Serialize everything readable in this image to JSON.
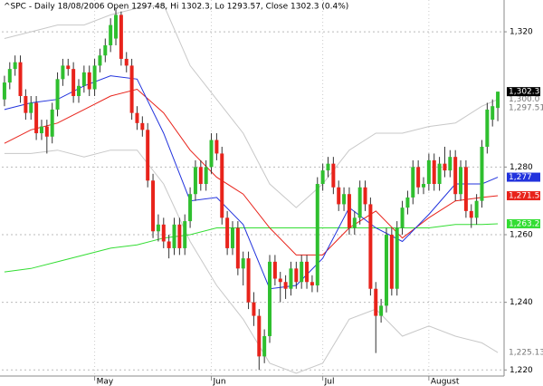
{
  "chart_data": {
    "type": "candlestick",
    "title": "^SPC - Daily 18/08/2006 Open 1297.48, Hi 1302.3, Lo 1293.57, Close 1302.3 (0.4%)",
    "categories": [
      null,
      null,
      null,
      null,
      null,
      null,
      null,
      null,
      null,
      null,
      null,
      null,
      null,
      null,
      null,
      null,
      null,
      "May",
      null,
      null,
      null,
      null,
      null,
      null,
      null,
      null,
      null,
      null,
      null,
      null,
      null,
      null,
      null,
      null,
      null,
      null,
      null,
      null,
      null,
      "Jun",
      null,
      null,
      null,
      null,
      null,
      null,
      null,
      null,
      null,
      null,
      null,
      null,
      null,
      null,
      null,
      null,
      null,
      null,
      null,
      null,
      "Jul",
      null,
      null,
      null,
      null,
      null,
      null,
      null,
      null,
      null,
      null,
      null,
      null,
      null,
      null,
      null,
      null,
      null,
      null,
      null,
      "August",
      null,
      null,
      null,
      null,
      null,
      null,
      null,
      null,
      null,
      null,
      null,
      null,
      null
    ],
    "open": [
      1300,
      1305,
      1309,
      1311,
      1301,
      1296,
      1299,
      1290,
      1292,
      1289,
      1297,
      1306,
      1310,
      1309,
      1301,
      1304,
      1308,
      1303,
      1310,
      1313,
      1316,
      1318,
      1325,
      1312,
      1310,
      1296,
      1293,
      1291,
      1276,
      1261,
      1263,
      1258,
      1256,
      1263,
      1256,
      1264,
      1272,
      1280,
      1275,
      1280,
      1288,
      1284,
      1265,
      1256,
      1262,
      1250,
      1253,
      1240,
      1236,
      1224,
      1230,
      1252,
      1247,
      1246,
      1244,
      1250,
      1246,
      1252,
      1246,
      1245,
      1275,
      1279,
      1281,
      1274,
      1269,
      1272,
      1262,
      1265,
      1274,
      1269,
      1244,
      1236,
      1239,
      1260,
      1244,
      1262,
      1268,
      1271,
      1280,
      1274,
      1275,
      1282,
      1275,
      1281,
      1279,
      1283,
      1272,
      1280,
      1267,
      1265,
      1270,
      1286,
      1294,
      1297.48
    ],
    "high": [
      1307,
      1311,
      1313,
      1313,
      1303,
      1301,
      1301,
      1294,
      1294,
      1299,
      1308,
      1312,
      1312,
      1311,
      1306,
      1310,
      1310,
      1312,
      1315,
      1318,
      1324,
      1327,
      1326,
      1314,
      1312,
      1298,
      1295,
      1293,
      1278,
      1266,
      1265,
      1260,
      1265,
      1265,
      1266,
      1274,
      1282,
      1282,
      1282,
      1290,
      1290,
      1286,
      1267,
      1264,
      1264,
      1255,
      1255,
      1243,
      1238,
      1232,
      1254,
      1254,
      1249,
      1248,
      1252,
      1252,
      1254,
      1254,
      1248,
      1277,
      1281,
      1283,
      1283,
      1276,
      1274,
      1274,
      1267,
      1276,
      1276,
      1271,
      1246,
      1241,
      1262,
      1262,
      1264,
      1270,
      1273,
      1282,
      1282,
      1277,
      1284,
      1284,
      1283,
      1286,
      1285,
      1285,
      1282,
      1282,
      1269,
      1272,
      1288,
      1299,
      1300,
      1302.3
    ],
    "low": [
      1298,
      1303,
      1307,
      1299,
      1294,
      1294,
      1288,
      1288,
      1284,
      1287,
      1295,
      1304,
      1307,
      1299,
      1299,
      1302,
      1301,
      1301,
      1308,
      1311,
      1314,
      1316,
      1310,
      1308,
      1294,
      1291,
      1289,
      1274,
      1259,
      1258,
      1256,
      1253,
      1254,
      1254,
      1254,
      1262,
      1270,
      1273,
      1273,
      1278,
      1282,
      1263,
      1254,
      1254,
      1248,
      1245,
      1238,
      1233,
      1220,
      1222,
      1228,
      1245,
      1240,
      1241,
      1242,
      1244,
      1244,
      1244,
      1243,
      1243,
      1273,
      1277,
      1272,
      1267,
      1267,
      1260,
      1260,
      1263,
      1267,
      1242,
      1225,
      1234,
      1237,
      1242,
      1242,
      1260,
      1266,
      1269,
      1272,
      1272,
      1273,
      1273,
      1273,
      1277,
      1277,
      1270,
      1270,
      1265,
      1262,
      1263,
      1268,
      1284,
      1292,
      1293.57
    ],
    "close": [
      1305,
      1309,
      1311,
      1301,
      1296,
      1299,
      1290,
      1292,
      1289,
      1297,
      1306,
      1310,
      1309,
      1301,
      1304,
      1308,
      1303,
      1310,
      1313,
      1316,
      1322,
      1325,
      1312,
      1310,
      1296,
      1293,
      1291,
      1276,
      1261,
      1263,
      1258,
      1256,
      1263,
      1256,
      1264,
      1272,
      1280,
      1275,
      1280,
      1288,
      1284,
      1265,
      1256,
      1262,
      1250,
      1253,
      1240,
      1236,
      1224,
      1230,
      1252,
      1247,
      1246,
      1244,
      1250,
      1246,
      1252,
      1246,
      1245,
      1275,
      1279,
      1281,
      1274,
      1269,
      1272,
      1262,
      1265,
      1274,
      1269,
      1244,
      1236,
      1239,
      1260,
      1244,
      1262,
      1268,
      1271,
      1280,
      1274,
      1275,
      1282,
      1275,
      1281,
      1279,
      1283,
      1272,
      1280,
      1267,
      1265,
      1270,
      1286,
      1297,
      1298,
      1302.3
    ],
    "up_color": "#2fbf2f",
    "down_color": "#e8231b",
    "close_label": "1,302.3",
    "overlays": [
      {
        "color": "#c8c8c8",
        "x": [
          0,
          5,
          10,
          15,
          20,
          25,
          30,
          35,
          40,
          45,
          50,
          55,
          60,
          65,
          70,
          75,
          80,
          85,
          90,
          93
        ],
        "values": [
          1318,
          1320,
          1322,
          1322,
          1325,
          1327,
          1328,
          1310,
          1300,
          1290,
          1275,
          1268,
          1275,
          1285,
          1290,
          1290,
          1292,
          1293,
          1298,
          1300
        ],
        "label": "1,300.0",
        "label_box": false
      },
      {
        "color": "#c8c8c8",
        "x": [
          0,
          5,
          10,
          15,
          20,
          25,
          30,
          35,
          40,
          45,
          50,
          55,
          60,
          65,
          70,
          75,
          80,
          85,
          90,
          93
        ],
        "values": [
          1284,
          1284,
          1285,
          1283,
          1285,
          1285,
          1275,
          1258,
          1245,
          1235,
          1222,
          1219,
          1222,
          1235,
          1238,
          1230,
          1233,
          1230,
          1228,
          1225.13
        ],
        "label": "1,225.13",
        "label_box": false
      },
      {
        "color": "#33dd33",
        "x": [
          0,
          5,
          10,
          15,
          20,
          25,
          30,
          35,
          40,
          45,
          50,
          55,
          60,
          65,
          70,
          75,
          80,
          85,
          90,
          93
        ],
        "values": [
          1249,
          1250,
          1252,
          1254,
          1256,
          1257,
          1259,
          1260,
          1262,
          1262,
          1262,
          1262,
          1262,
          1262,
          1262,
          1262,
          1262,
          1263,
          1263,
          1263.22
        ],
        "label": "1,263.22",
        "label_box": true
      },
      {
        "color": "#e8231b",
        "x": [
          0,
          5,
          10,
          15,
          20,
          25,
          30,
          35,
          40,
          45,
          50,
          55,
          60,
          65,
          70,
          75,
          80,
          85,
          90,
          93
        ],
        "values": [
          1287,
          1291,
          1293,
          1297,
          1301,
          1303,
          1296,
          1285,
          1277,
          1272,
          1262,
          1254,
          1254,
          1262,
          1267,
          1259,
          1265,
          1270,
          1271,
          1271.51
        ],
        "label": "1,271.51",
        "label_box": true
      },
      {
        "color": "#2233dd",
        "x": [
          0,
          5,
          10,
          15,
          20,
          25,
          30,
          35,
          40,
          45,
          50,
          55,
          60,
          65,
          70,
          75,
          80,
          85,
          90,
          93
        ],
        "values": [
          1297,
          1299,
          1300,
          1304,
          1307,
          1306,
          1290,
          1270,
          1271,
          1263,
          1244,
          1245,
          1253,
          1268,
          1262,
          1258,
          1266,
          1275,
          1275,
          1277
        ],
        "label": "1,277",
        "label_box": true
      }
    ],
    "annotations": [
      {
        "text": "1,297.51",
        "value": 1297.51
      }
    ],
    "ylim": [
      1218.2,
      1329.4
    ],
    "yticks": [
      {
        "value": 1220,
        "label": "1,220"
      },
      {
        "value": 1240,
        "label": "1,240"
      },
      {
        "value": 1260,
        "label": "1,260"
      },
      {
        "value": 1280,
        "label": "1,280"
      },
      {
        "value": 1320,
        "label": "1,320"
      }
    ],
    "grid": true
  }
}
